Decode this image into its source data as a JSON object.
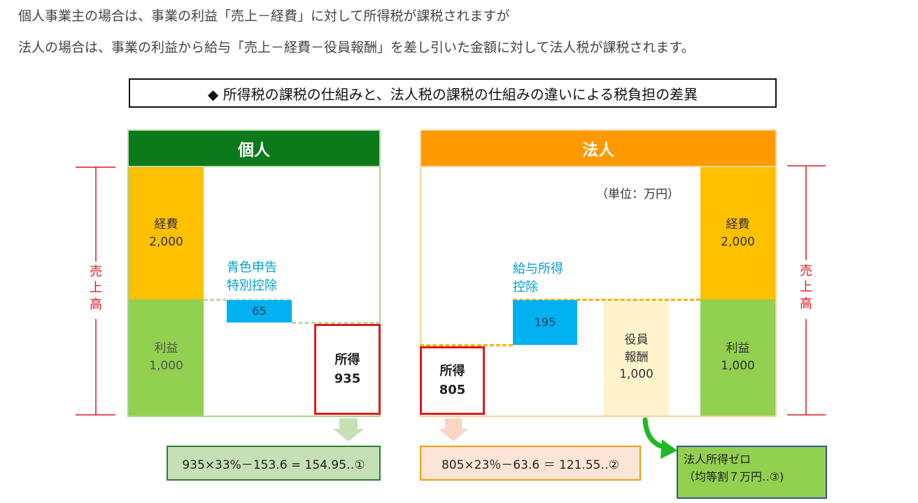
{
  "intro": {
    "line1": "個人事業主の場合は、事業の利益「売上－経費」に対して所得税が課税されますが",
    "line2": "法人の場合は、事業の利益から給与「売上－経費－役員報酬」を差し引いた金額に対して法人税が課税されます。"
  },
  "title": "◆ 所得税の課税の仕組みと、法人税の課税の仕組みの違いによる税負担の差異",
  "kojin": {
    "header": "個人",
    "expense_label": "経費",
    "expense_value": "2,000",
    "profit_label": "利益",
    "profit_value": "1,000",
    "deduction_line1": "青色申告",
    "deduction_line2": "特別控除",
    "deduction_value": "65",
    "income_label": "所得",
    "income_value": "935",
    "formula": "935×33%－153.6 = 154.95‥①"
  },
  "hojin": {
    "header": "法人",
    "unit": "（単位：万円）",
    "expense_label": "経費",
    "expense_value": "2,000",
    "profit_label": "利益",
    "profit_value": "1,000",
    "deduction_line1": "給与所得",
    "deduction_line2": "控除",
    "deduction_value": "195",
    "salary_line1": "役員",
    "salary_line2": "報酬",
    "salary_value": "1,000",
    "income_label": "所得",
    "income_value": "805",
    "formula": "805×23％－63.6 ＝ 121.55‥②",
    "zero_line1": "法人所得ゼロ",
    "zero_line2": "（均等割７万円‥③)"
  },
  "sales_label": {
    "c1": "売",
    "c2": "上",
    "c3": "高"
  },
  "colors": {
    "kojin_header": "#0a7a1b",
    "hojin_header": "#ff9900",
    "expense": "#ffc000",
    "profit": "#92d050",
    "deduction": "#00b0f0",
    "salary": "#fff2cc",
    "income_border": "#e0191f",
    "note_text": "#00a0d0"
  }
}
